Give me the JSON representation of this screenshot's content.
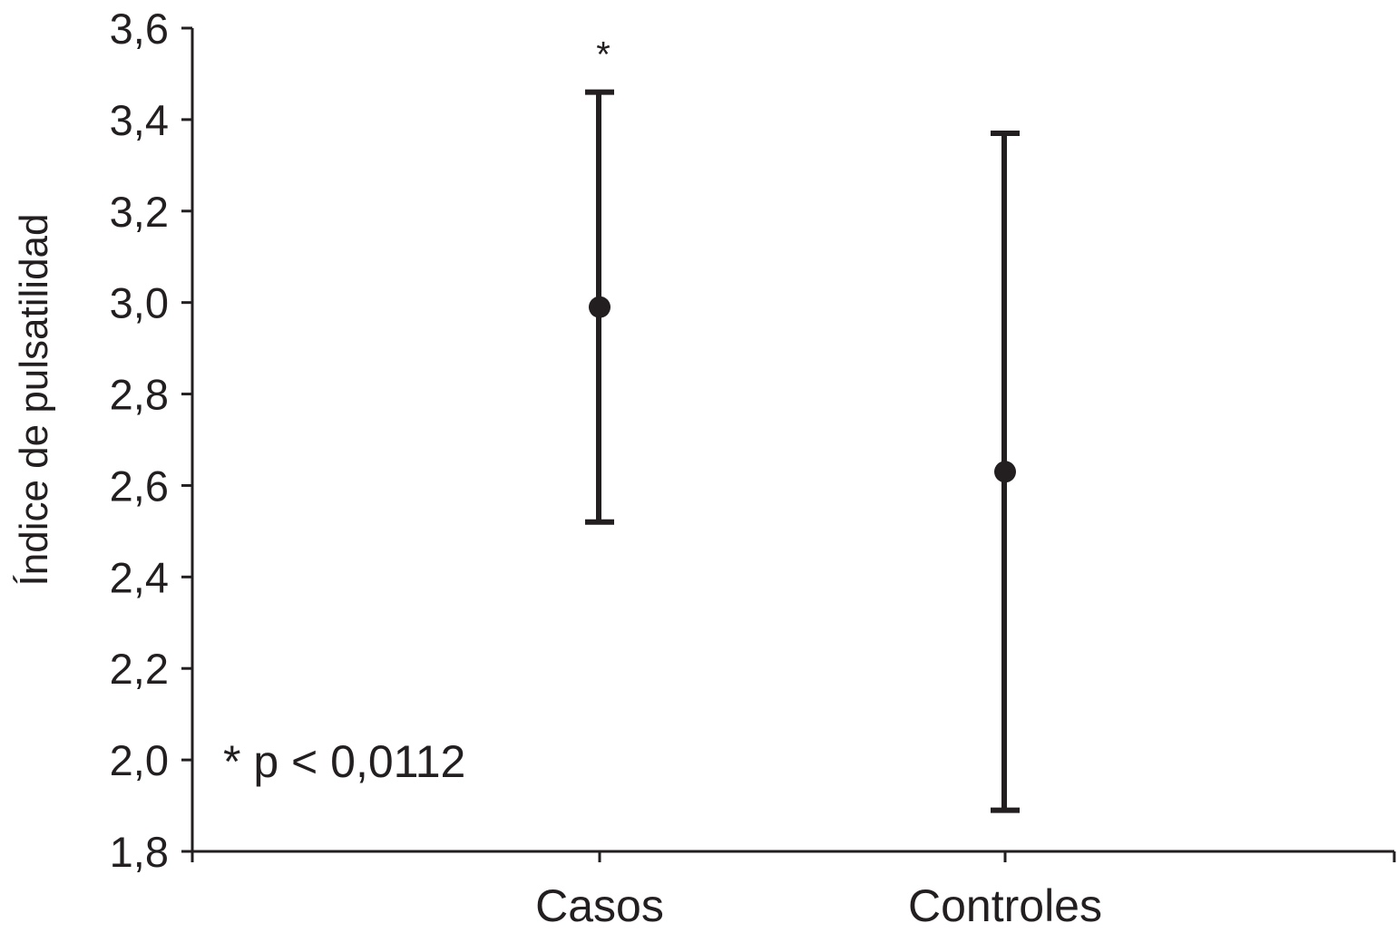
{
  "chart_data": {
    "type": "scatter",
    "title": "",
    "xlabel": "",
    "ylabel": "Índice de pulsatilidad",
    "ylim": [
      1.8,
      3.6
    ],
    "yticks": [
      "1,8",
      "2,0",
      "2,2",
      "2,4",
      "2,6",
      "2,8",
      "3,0",
      "3,2",
      "3,4",
      "3,6"
    ],
    "ytick_values": [
      1.8,
      2.0,
      2.2,
      2.4,
      2.6,
      2.8,
      3.0,
      3.2,
      3.4,
      3.6
    ],
    "categories": [
      "Casos",
      "Controles"
    ],
    "series": [
      {
        "values": [
          2.99,
          2.63
        ],
        "error_lower": [
          2.52,
          1.89
        ],
        "error_upper": [
          3.46,
          3.37
        ],
        "significance_marker": [
          "*",
          ""
        ]
      }
    ],
    "annotation": "* p < 0,0112",
    "grid": false,
    "colors": {
      "marks": "#231f20"
    }
  }
}
